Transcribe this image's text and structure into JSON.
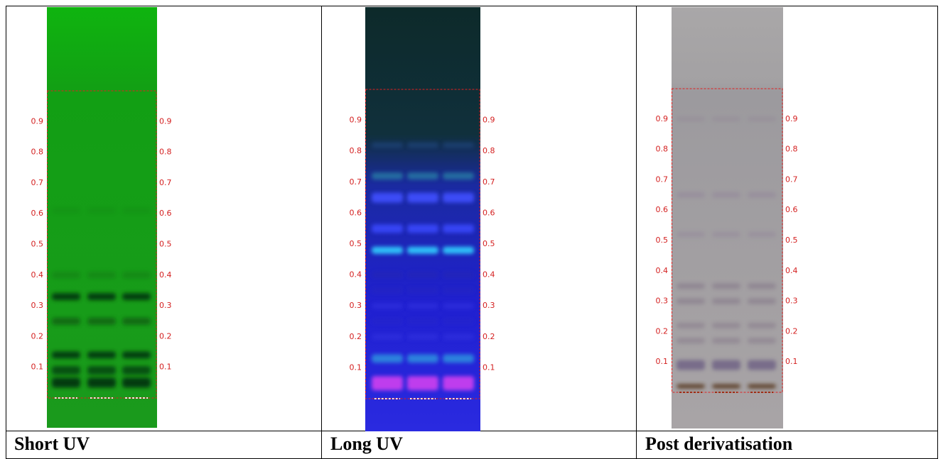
{
  "table": {
    "columns": [
      {
        "caption": "Short UV"
      },
      {
        "caption": "Long UV"
      },
      {
        "caption": "Post derivatisation"
      }
    ],
    "rf_scale": [
      "0.9",
      "0.8",
      "0.7",
      "0.6",
      "0.5",
      "0.4",
      "0.3",
      "0.2",
      "0.1"
    ]
  }
}
